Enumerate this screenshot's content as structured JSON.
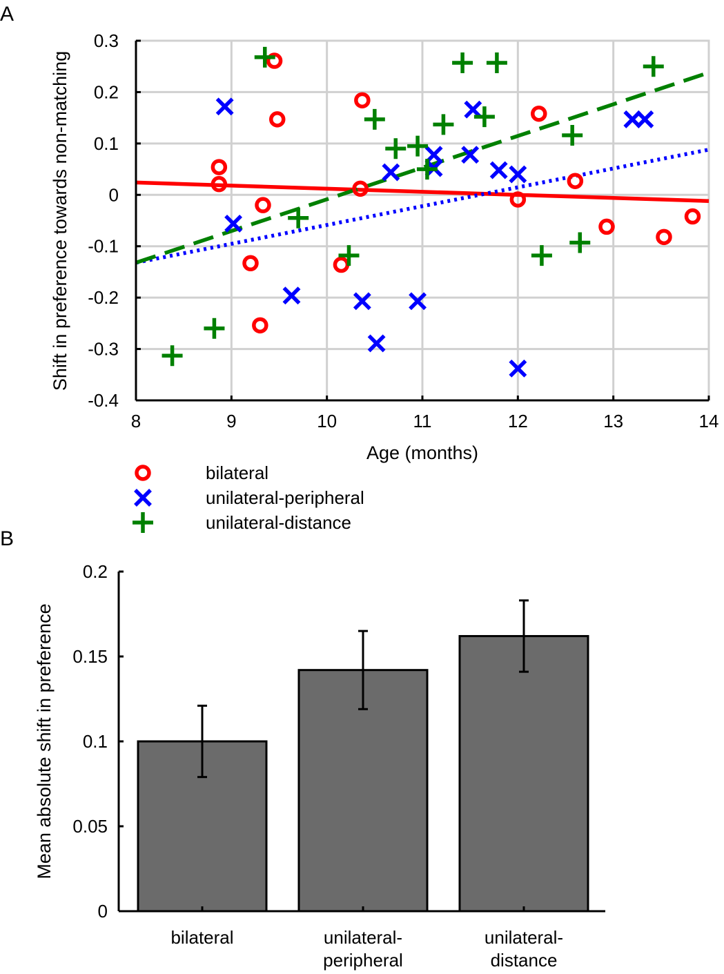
{
  "panel_labels": {
    "a": "A",
    "b": "B"
  },
  "colors": {
    "bilateral": "#ff0000",
    "unilateral-peripheral": "#0000ff",
    "unilateral-distance": "#008000",
    "bar_fill": "#6b6b6b",
    "grid": "#d0d0d0"
  },
  "chart_data": [
    {
      "id": "A",
      "type": "scatter",
      "title": "",
      "xlabel": "Age (months)",
      "ylabel": "Shift in preference towards non-matching",
      "xlim": [
        8,
        14
      ],
      "ylim": [
        -0.4,
        0.3
      ],
      "xticks": [
        8,
        9,
        10,
        11,
        12,
        13,
        14
      ],
      "xtick_labels": [
        "8",
        "9",
        "10",
        "11",
        "12",
        "13",
        "14"
      ],
      "yticks": [
        -0.4,
        -0.3,
        -0.2,
        -0.1,
        0,
        0.1,
        0.2,
        0.3
      ],
      "ytick_labels": [
        "-0.4",
        "-0.3",
        "-0.2",
        "-0.1",
        "0",
        "0.1",
        "0.2",
        "0.3"
      ],
      "grid": true,
      "legend_position": "below",
      "series": [
        {
          "name": "bilateral",
          "marker": "circle",
          "color": "#ff0000",
          "fit_style": "solid",
          "fit_line": {
            "x": [
              8,
              14
            ],
            "y": [
              0.024,
              -0.012
            ]
          },
          "points": [
            [
              8.87,
              0.054
            ],
            [
              8.87,
              0.021
            ],
            [
              9.2,
              -0.133
            ],
            [
              9.3,
              -0.254
            ],
            [
              9.33,
              -0.02
            ],
            [
              9.45,
              0.261
            ],
            [
              9.48,
              0.147
            ],
            [
              10.15,
              -0.136
            ],
            [
              10.35,
              0.012
            ],
            [
              10.37,
              0.184
            ],
            [
              12.0,
              -0.009
            ],
            [
              12.22,
              0.158
            ],
            [
              12.6,
              0.027
            ],
            [
              12.93,
              -0.062
            ],
            [
              13.53,
              -0.082
            ],
            [
              13.83,
              -0.042
            ]
          ]
        },
        {
          "name": "unilateral-peripheral",
          "marker": "x",
          "color": "#0000ff",
          "fit_style": "dotted",
          "fit_line": {
            "x": [
              8,
              14
            ],
            "y": [
              -0.132,
              0.088
            ]
          },
          "points": [
            [
              8.93,
              0.172
            ],
            [
              9.02,
              -0.056
            ],
            [
              9.63,
              -0.196
            ],
            [
              10.37,
              -0.207
            ],
            [
              10.52,
              -0.289
            ],
            [
              10.67,
              0.044
            ],
            [
              10.95,
              -0.207
            ],
            [
              11.12,
              0.078
            ],
            [
              11.12,
              0.052
            ],
            [
              11.5,
              0.078
            ],
            [
              11.53,
              0.166
            ],
            [
              11.8,
              0.048
            ],
            [
              12.0,
              0.04
            ],
            [
              12.0,
              -0.338
            ],
            [
              13.2,
              0.147
            ],
            [
              13.33,
              0.147
            ]
          ]
        },
        {
          "name": "unilateral-distance",
          "marker": "plus",
          "color": "#008000",
          "fit_style": "dashed",
          "fit_line": {
            "x": [
              8,
              14
            ],
            "y": [
              -0.132,
              0.238
            ]
          },
          "points": [
            [
              8.38,
              -0.313
            ],
            [
              8.82,
              -0.26
            ],
            [
              9.35,
              0.268
            ],
            [
              9.7,
              -0.045
            ],
            [
              10.23,
              -0.118
            ],
            [
              10.5,
              0.147
            ],
            [
              10.72,
              0.09
            ],
            [
              10.95,
              0.095
            ],
            [
              11.05,
              0.05
            ],
            [
              11.22,
              0.137
            ],
            [
              11.42,
              0.257
            ],
            [
              11.65,
              0.152
            ],
            [
              11.78,
              0.257
            ],
            [
              12.25,
              -0.118
            ],
            [
              12.57,
              0.116
            ],
            [
              12.65,
              -0.093
            ],
            [
              13.42,
              0.25
            ]
          ]
        }
      ]
    },
    {
      "id": "B",
      "type": "bar",
      "title": "",
      "xlabel": "",
      "ylabel": "Mean absolute shift in preference",
      "categories": [
        "bilateral",
        "unilateral-peripheral",
        "unilateral-distance"
      ],
      "category_lines": [
        [
          "bilateral"
        ],
        [
          "unilateral-",
          "peripheral"
        ],
        [
          "unilateral-",
          "distance"
        ]
      ],
      "values": [
        0.1,
        0.142,
        0.162
      ],
      "errors": [
        0.021,
        0.023,
        0.021
      ],
      "ylim": [
        0,
        0.2
      ],
      "yticks": [
        0,
        0.05,
        0.1,
        0.15,
        0.2
      ],
      "ytick_labels": [
        "0",
        "0.05",
        "0.1",
        "0.15",
        "0.2"
      ],
      "grid": false
    }
  ]
}
